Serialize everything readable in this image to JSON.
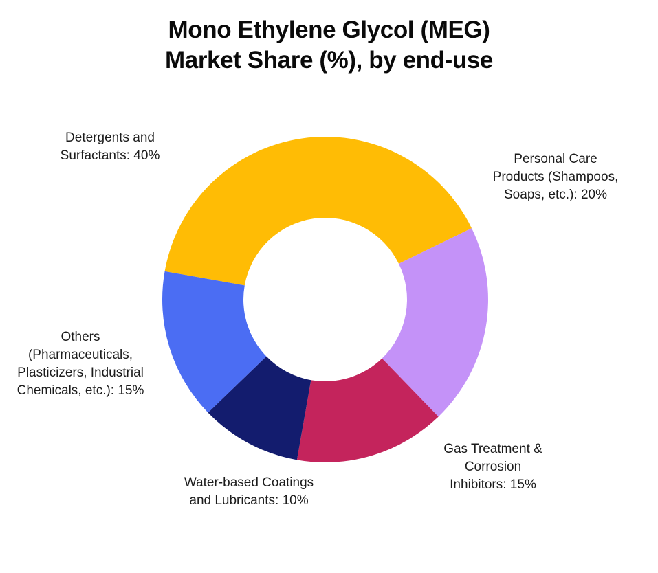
{
  "title": {
    "line1": "Mono Ethylene Glycol (MEG)",
    "line2": "Market Share (%), by end-use"
  },
  "colors": {
    "background": "#FFFFFF",
    "title_text": "#0A0A0A",
    "label_text": "#1C1C1C"
  },
  "chart_data": {
    "type": "pie",
    "title": "Mono Ethylene Glycol (MEG) Market Share (%), by end-use",
    "donut": true,
    "start_angle_deg_clockwise_from_top": -80,
    "legend_position": "labels-around-chart",
    "slices": [
      {
        "label": "Detergents and Surfactants",
        "value": 40,
        "color": "#FFBC05",
        "label_lines": [
          "Detergents and",
          "Surfactants: 40%"
        ]
      },
      {
        "label": "Personal Care Products (Shampoos, Soaps, etc.)",
        "value": 20,
        "color": "#C492F8",
        "label_lines": [
          "Personal Care",
          "Products (Shampoos,",
          "Soaps, etc.): 20%"
        ]
      },
      {
        "label": "Gas Treatment & Corrosion Inhibitors",
        "value": 15,
        "color": "#C4245C",
        "label_lines": [
          "Gas Treatment &",
          "Corrosion",
          "Inhibitors: 15%"
        ]
      },
      {
        "label": "Water-based Coatings and Lubricants",
        "value": 10,
        "color": "#131C6E",
        "label_lines": [
          "Water-based Coatings",
          "and Lubricants: 10%"
        ]
      },
      {
        "label": "Others (Pharmaceuticals, Plasticizers, Industrial Chemicals, etc.)",
        "value": 15,
        "color": "#4B6DF3",
        "label_lines": [
          "Others",
          "(Pharmaceuticals,",
          "Plasticizers, Industrial",
          "Chemicals, etc.): 15%"
        ]
      }
    ]
  }
}
